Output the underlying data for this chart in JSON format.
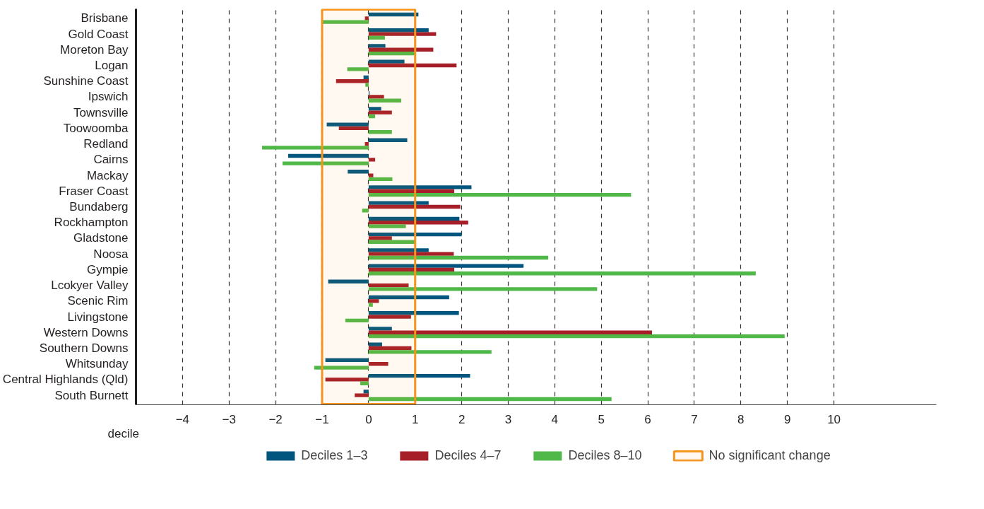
{
  "chart_data": {
    "type": "bar",
    "orientation": "horizontal",
    "xlabel": "decile",
    "categories": [
      "Brisbane",
      "Gold Coast",
      "Moreton Bay",
      "Logan",
      "Sunshine Coast",
      "Ipswich",
      "Townsville",
      "Toowoomba",
      "Redland",
      "Cairns",
      "Mackay",
      "Fraser Coast",
      "Bundaberg",
      "Rockhampton",
      "Gladstone",
      "Noosa",
      "Gympie",
      "Lcokyer Valley",
      "Scenic Rim",
      "Livingstone",
      "Western Downs",
      "Southern Downs",
      "Whitsunday",
      "Central Highlands (Qld)",
      "South Burnett"
    ],
    "series": [
      {
        "name": "Deciles 1–3",
        "color": "#00557f",
        "values": [
          1.07,
          1.29,
          0.36,
          0.77,
          -0.11,
          0.02,
          0.27,
          -0.9,
          0.83,
          -1.73,
          -0.45,
          2.21,
          1.29,
          1.95,
          2.0,
          1.29,
          3.33,
          -0.87,
          1.73,
          1.94,
          0.5,
          0.29,
          -0.93,
          2.18,
          -0.11
        ]
      },
      {
        "name": "Deciles 4–7",
        "color": "#a51e28",
        "values": [
          -0.08,
          1.45,
          1.39,
          1.89,
          -0.7,
          0.33,
          0.5,
          -0.64,
          -0.08,
          0.14,
          0.1,
          1.84,
          1.97,
          2.14,
          0.5,
          1.83,
          1.84,
          0.86,
          0.22,
          0.91,
          6.09,
          0.92,
          0.42,
          -0.93,
          -0.3
        ]
      },
      {
        "name": "Deciles 8–10",
        "color": "#50b848",
        "values": [
          -1.0,
          0.35,
          1.01,
          -0.46,
          -0.07,
          0.7,
          0.14,
          0.5,
          -2.29,
          -1.85,
          0.51,
          5.64,
          -0.14,
          0.8,
          1.0,
          3.86,
          8.32,
          4.91,
          0.09,
          -0.5,
          8.94,
          2.64,
          -1.17,
          -0.18,
          5.22
        ]
      }
    ],
    "bands": [
      {
        "axis": "x",
        "from": -1,
        "to": 1,
        "label": "No significant change",
        "color": "#f7941d"
      }
    ],
    "xlim": [
      -5,
      12.2
    ],
    "xticks": [
      -4,
      -3,
      -2,
      -1,
      0,
      1,
      2,
      3,
      4,
      5,
      6,
      7,
      8,
      9,
      10
    ],
    "grid": "x",
    "legend": "bottom"
  }
}
